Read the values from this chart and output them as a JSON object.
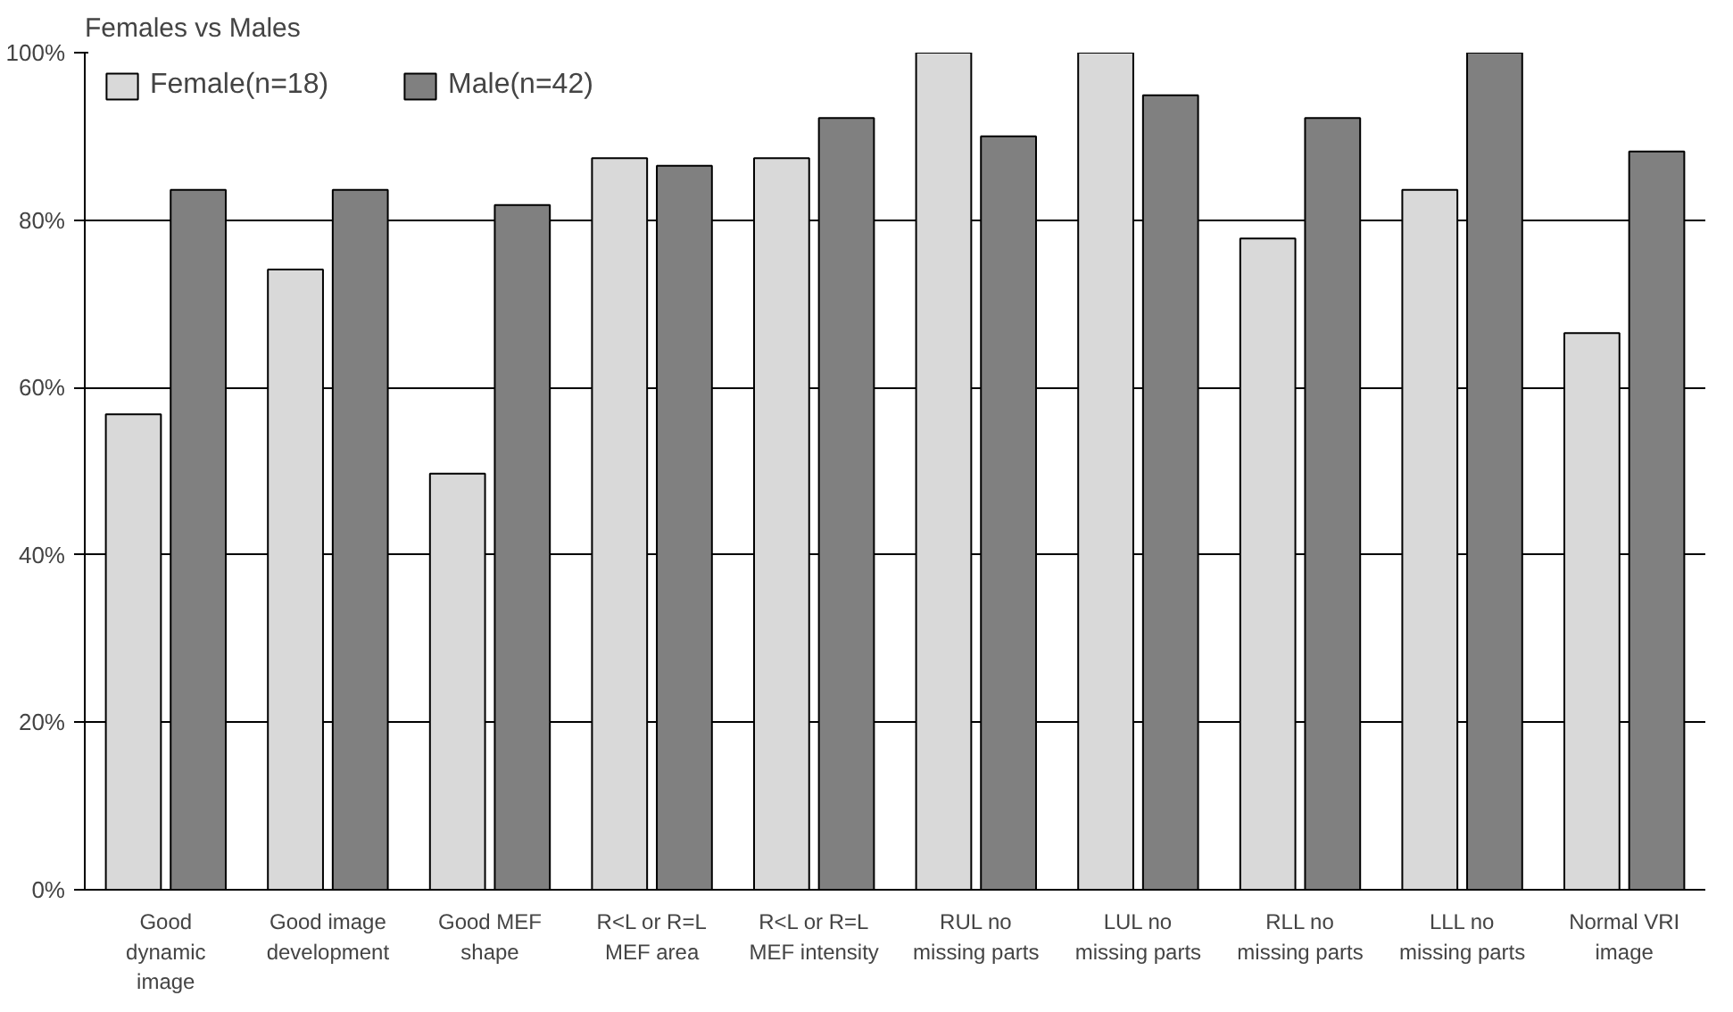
{
  "chart_data": {
    "type": "bar",
    "title": "Females vs Males",
    "categories": [
      "Good\ndynamic\nimage",
      "Good image\ndevelopment",
      "Good MEF\nshape",
      "R<L or R=L\nMEF area",
      "R<L or R=L\nMEF intensity",
      "RUL no\nmissing parts",
      "LUL no\nmissing parts",
      "RLL no\nmissing parts",
      "LLL no\nmissing parts",
      "Normal VRI\nimage"
    ],
    "series": [
      {
        "name": "Female(n=18)",
        "color": "#d9d9d9",
        "values": [
          56.8,
          74.1,
          49.7,
          87.4,
          87.4,
          100,
          100,
          77.8,
          83.6,
          66.5
        ]
      },
      {
        "name": "Male(n=42)",
        "color": "#808080",
        "values": [
          83.6,
          83.6,
          81.8,
          86.5,
          92.2,
          90,
          94.9,
          92.2,
          100,
          88.2
        ]
      }
    ],
    "ylim": [
      0,
      100
    ],
    "yticks": [
      {
        "value": 0,
        "label": "0%"
      },
      {
        "value": 20,
        "label": "20%"
      },
      {
        "value": 40,
        "label": "40%"
      },
      {
        "value": 60,
        "label": "60%"
      },
      {
        "value": 80,
        "label": "80%"
      },
      {
        "value": 100,
        "label": "100%"
      }
    ],
    "grid": "y",
    "legend": "top left"
  }
}
